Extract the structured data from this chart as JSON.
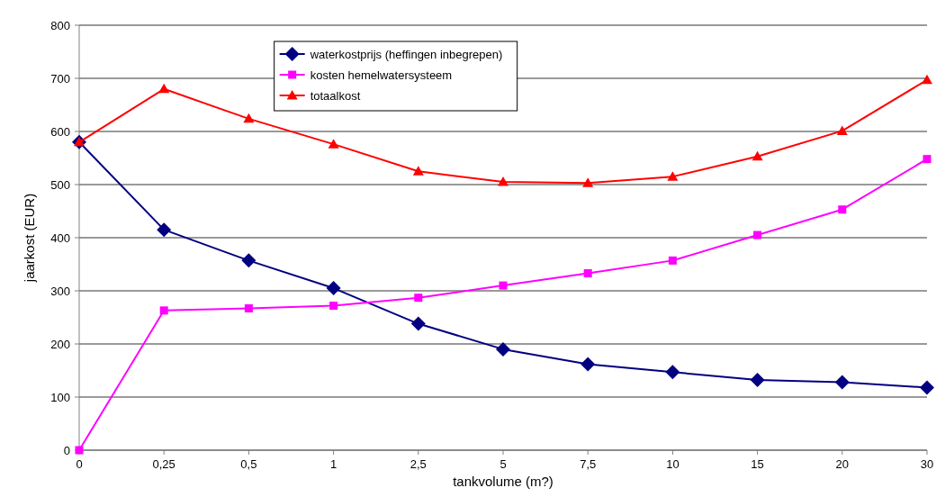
{
  "chart_data": {
    "type": "line",
    "xlabel": "tankvolume (m?)",
    "ylabel": "jaarkost (EUR)",
    "categories": [
      "0",
      "0,25",
      "0,5",
      "1",
      "2,5",
      "5",
      "7,5",
      "10",
      "15",
      "20",
      "30"
    ],
    "ylim": [
      0,
      800
    ],
    "yticks": [
      0,
      100,
      200,
      300,
      400,
      500,
      600,
      700,
      800
    ],
    "grid": "y",
    "legend": "top left",
    "series": [
      {
        "name": "waterkostprijs (heffingen inbegrepen)",
        "color": "#000080",
        "marker": "diamond",
        "values": [
          580,
          415,
          357,
          305,
          238,
          190,
          162,
          147,
          132,
          128,
          118
        ]
      },
      {
        "name": "kosten hemelwatersysteem",
        "color": "#ff00ff",
        "marker": "square",
        "values": [
          0,
          263,
          267,
          272,
          287,
          310,
          333,
          357,
          405,
          453,
          548
        ]
      },
      {
        "name": "totaalkost",
        "color": "#ff0000",
        "marker": "triangle",
        "values": [
          580,
          680,
          624,
          576,
          525,
          505,
          503,
          515,
          553,
          601,
          697
        ]
      }
    ]
  }
}
